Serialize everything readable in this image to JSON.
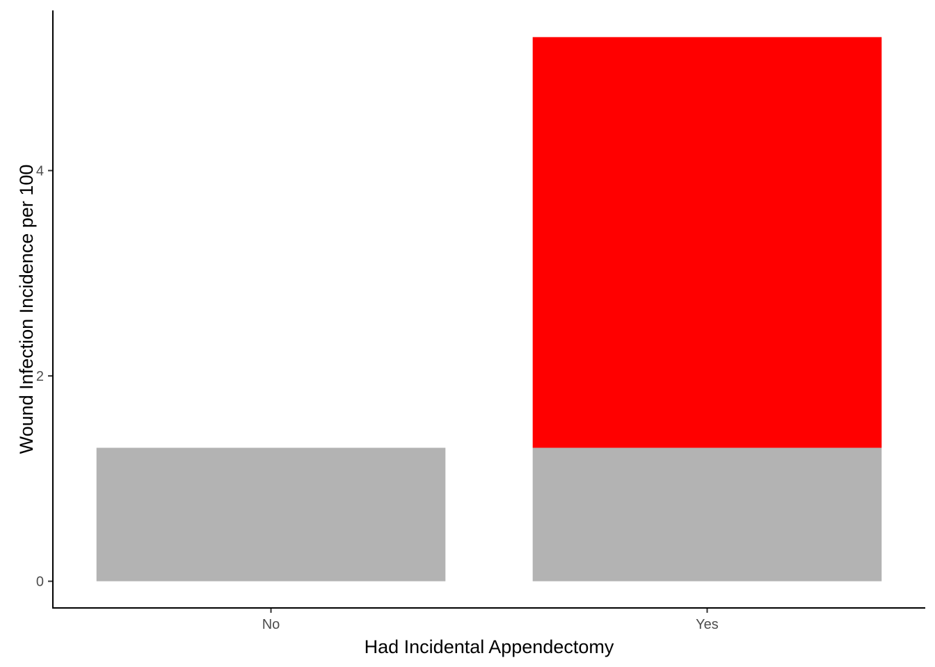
{
  "chart_data": {
    "type": "bar",
    "stacked": true,
    "categories": [
      "No",
      "Yes"
    ],
    "series": [
      {
        "values": [
          1.3,
          1.3
        ],
        "color": "#b3b3b3"
      },
      {
        "values": [
          0,
          4.0
        ],
        "color": "#ff0000"
      }
    ],
    "title": "",
    "xlabel": "Had Incidental Appendectomy",
    "ylabel": "Wound Infection Incidence per 100",
    "ylim": [
      -0.26,
      5.56
    ],
    "yticks": [
      0,
      2,
      4
    ],
    "grid": false,
    "legend": "none"
  }
}
